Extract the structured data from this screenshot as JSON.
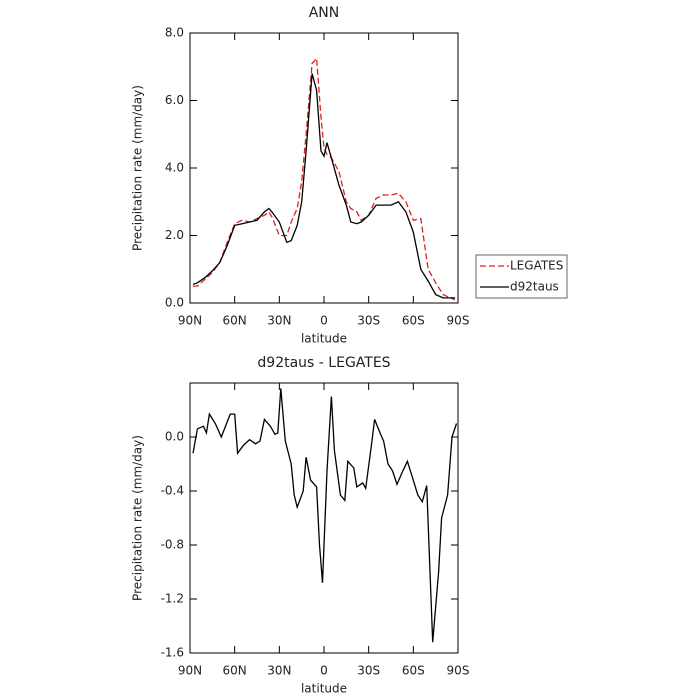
{
  "chart_data": [
    {
      "type": "line",
      "title": "ANN",
      "x_label": "latitude",
      "y_label": "Precipitation rate (mm/day)",
      "x": [
        88,
        85,
        80,
        75,
        70,
        65,
        60,
        55,
        50,
        45,
        40,
        37,
        35,
        30,
        25,
        22,
        18,
        15,
        12,
        8,
        5,
        2,
        0,
        -2,
        -5,
        -10,
        -15,
        -18,
        -22,
        -25,
        -30,
        -35,
        -40,
        -45,
        -50,
        -55,
        -60,
        -65,
        -70,
        -75,
        -80,
        -85,
        -88
      ],
      "series": [
        {
          "name": "LEGATES",
          "color": "#e02020",
          "dash": true,
          "values": [
            0.5,
            0.5,
            0.7,
            0.9,
            1.2,
            1.8,
            2.35,
            2.45,
            2.4,
            2.5,
            2.6,
            2.7,
            2.55,
            2.0,
            2.0,
            2.4,
            2.8,
            3.6,
            5.0,
            7.1,
            7.25,
            5.5,
            4.6,
            4.4,
            4.3,
            3.9,
            3.0,
            2.8,
            2.7,
            2.45,
            2.6,
            3.1,
            3.2,
            3.2,
            3.25,
            3.0,
            2.45,
            2.5,
            1.0,
            0.6,
            0.25,
            0.15,
            0.1
          ]
        },
        {
          "name": "d92taus",
          "color": "#000000",
          "dash": false,
          "values": [
            0.55,
            0.6,
            0.75,
            0.95,
            1.2,
            1.7,
            2.3,
            2.35,
            2.4,
            2.45,
            2.7,
            2.8,
            2.7,
            2.4,
            1.8,
            1.85,
            2.3,
            3.0,
            4.5,
            6.8,
            6.3,
            4.5,
            4.35,
            4.75,
            4.3,
            3.5,
            2.9,
            2.4,
            2.35,
            2.4,
            2.6,
            2.9,
            2.9,
            2.9,
            3.0,
            2.7,
            2.1,
            1.0,
            0.65,
            0.25,
            0.15,
            0.15,
            0.15
          ]
        }
      ],
      "xlim": [
        90,
        -90
      ],
      "xticks": [
        {
          "value": 90,
          "label": "90N"
        },
        {
          "value": 60,
          "label": "60N"
        },
        {
          "value": 30,
          "label": "30N"
        },
        0,
        {
          "value": -30,
          "label": "30S"
        },
        {
          "value": -60,
          "label": "60S"
        },
        {
          "value": -90,
          "label": "90S"
        }
      ],
      "ylim": [
        0,
        8
      ],
      "yticks": [
        {
          "value": 0,
          "label": "0.0"
        },
        {
          "value": 2,
          "label": "2.0"
        },
        {
          "value": 4,
          "label": "4.0"
        },
        {
          "value": 6,
          "label": "6.0"
        },
        {
          "value": 8,
          "label": "8.0"
        }
      ],
      "legend": "right"
    },
    {
      "type": "line",
      "title": "d92taus - LEGATES",
      "x_label": "latitude",
      "y_label": "Precipitation rate (mm/day)",
      "color": "#000000",
      "x": [
        88,
        85,
        81,
        79,
        77,
        73,
        69,
        63,
        60,
        58,
        54,
        50,
        46,
        43,
        40,
        36,
        33,
        31,
        29,
        26,
        22,
        20,
        18,
        14,
        12,
        9,
        5,
        3,
        1,
        -2,
        -5,
        -7,
        -11,
        -14,
        -16,
        -20,
        -22,
        -26,
        -28,
        -32,
        -34,
        -38,
        -40,
        -43,
        -46,
        -49,
        -53,
        -56,
        -60,
        -63,
        -66,
        -69,
        -73,
        -77,
        -79,
        -83,
        -86,
        -89
      ],
      "values": [
        -0.12,
        0.06,
        0.08,
        0.03,
        0.17,
        0.1,
        0.0,
        0.17,
        0.17,
        -0.12,
        -0.06,
        -0.02,
        -0.05,
        -0.03,
        0.13,
        0.08,
        0.02,
        0.03,
        0.36,
        -0.03,
        -0.2,
        -0.43,
        -0.52,
        -0.4,
        -0.15,
        -0.32,
        -0.37,
        -0.8,
        -1.08,
        -0.25,
        0.3,
        -0.1,
        -0.43,
        -0.47,
        -0.18,
        -0.23,
        -0.37,
        -0.34,
        -0.38,
        -0.05,
        0.13,
        0.02,
        -0.03,
        -0.2,
        -0.25,
        -0.35,
        -0.25,
        -0.18,
        -0.32,
        -0.43,
        -0.48,
        -0.36,
        -1.52,
        -1.0,
        -0.6,
        -0.43,
        0.0,
        0.1
      ],
      "xlim": [
        90,
        -90
      ],
      "xticks": [
        {
          "value": 90,
          "label": "90N"
        },
        {
          "value": 60,
          "label": "60N"
        },
        {
          "value": 30,
          "label": "30N"
        },
        0,
        {
          "value": -30,
          "label": "30S"
        },
        {
          "value": -60,
          "label": "60S"
        },
        {
          "value": -90,
          "label": "90S"
        }
      ],
      "ylim": [
        -1.6,
        0.4
      ],
      "yticks": [
        {
          "value": 0,
          "label": "0.0"
        },
        {
          "value": -0.4,
          "label": "-0.4"
        },
        {
          "value": -0.8,
          "label": "-0.8"
        },
        {
          "value": -1.2,
          "label": "-1.2"
        },
        {
          "value": -1.6,
          "label": "-1.6"
        }
      ]
    }
  ]
}
